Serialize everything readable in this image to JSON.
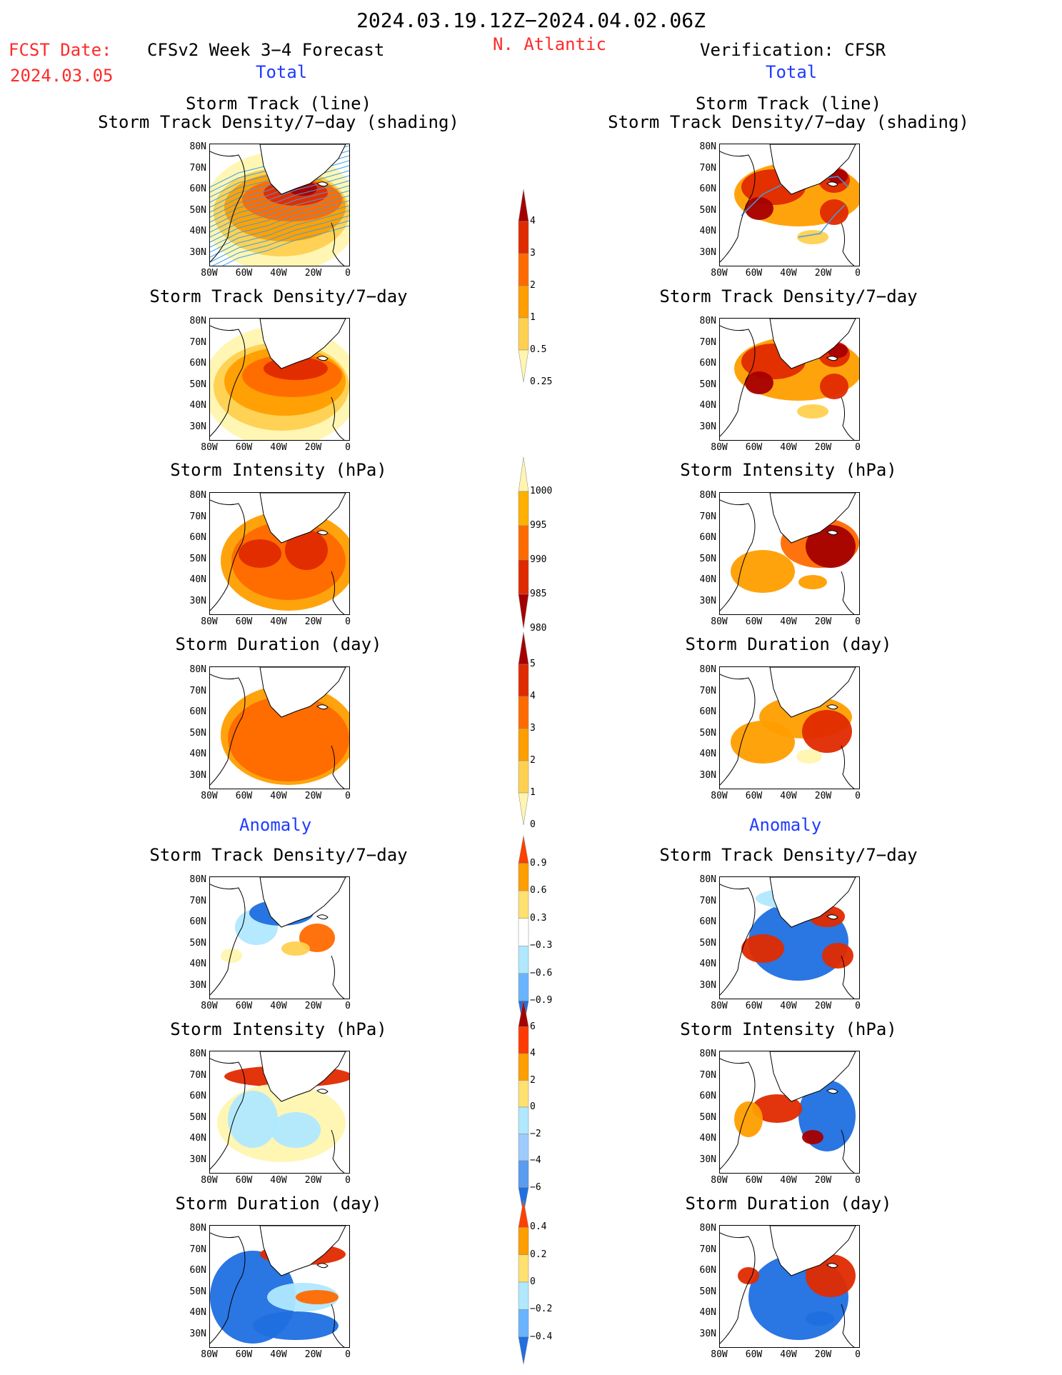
{
  "header": {
    "period": "2024.03.19.12Z−2024.04.02.06Z",
    "region": "N. Atlantic",
    "fcst_label": "FCST Date:",
    "fcst_date": "2024.03.05",
    "model_title": "CFSv2 Week 3−4 Forecast",
    "verif_title": "Verification: CFSR"
  },
  "sections": {
    "total": "Total",
    "anomaly": "Anomaly"
  },
  "panel_titles": {
    "track_line": "Storm Track (line)",
    "track_shading": "Storm Track Density/7−day (shading)",
    "density": "Storm Track Density/7−day",
    "intensity": "Storm Intensity (hPa)",
    "duration": "Storm Duration (day)"
  },
  "axes": {
    "lat_labels": [
      "80N",
      "70N",
      "60N",
      "50N",
      "40N",
      "30N"
    ],
    "lon_labels": [
      "80W",
      "60W",
      "40W",
      "20W",
      "0"
    ]
  },
  "colorbars": [
    {
      "id": "density_total",
      "labels": [
        "4",
        "3",
        "2",
        "1",
        "0.5",
        "0.25"
      ],
      "colors": [
        "#a50000",
        "#e02a00",
        "#ff6a00",
        "#ff9e00",
        "#ffd050",
        "#fff5b0"
      ]
    },
    {
      "id": "intensity_total",
      "labels": [
        "1000",
        "995",
        "990",
        "985",
        "980"
      ],
      "colors": [
        "#fff5b0",
        "#ffb000",
        "#ff6a00",
        "#e02a00",
        "#a50000"
      ]
    },
    {
      "id": "duration_total",
      "labels": [
        "5",
        "4",
        "3",
        "2",
        "1",
        "0"
      ],
      "colors": [
        "#a50000",
        "#e02a00",
        "#ff6a00",
        "#ff9e00",
        "#ffd050",
        "#fff5b0"
      ]
    },
    {
      "id": "density_anom",
      "labels": [
        "0.9",
        "0.6",
        "0.3",
        "−0.3",
        "−0.6",
        "−0.9"
      ],
      "colors": [
        "#ff4000",
        "#ff9e00",
        "#ffe070",
        "#ffffff",
        "#b0e8ff",
        "#6ab4ff",
        "#1f6fe0"
      ]
    },
    {
      "id": "intensity_anom",
      "labels": [
        "6",
        "4",
        "2",
        "0",
        "−2",
        "−4",
        "−6"
      ],
      "colors": [
        "#a50000",
        "#ff3a00",
        "#ff9e00",
        "#ffe070",
        "#b0e8ff",
        "#9ecbff",
        "#5a9cf0",
        "#1f6fe0"
      ]
    },
    {
      "id": "duration_anom",
      "labels": [
        "0.4",
        "0.2",
        "0",
        "−0.2",
        "−0.4"
      ],
      "colors": [
        "#ff4000",
        "#ff9e00",
        "#ffe070",
        "#b0e8ff",
        "#6ab4ff",
        "#1f6fe0"
      ]
    }
  ],
  "colors": {
    "darkred": "#a50000",
    "red": "#e02a00",
    "orange": "#ff6a00",
    "lightorange": "#ff9e00",
    "yellow": "#ffd050",
    "paleyellow": "#fff5b0",
    "lightblue": "#b0e8ff",
    "blue": "#1f6fe0",
    "track": "#3aa0e8"
  }
}
